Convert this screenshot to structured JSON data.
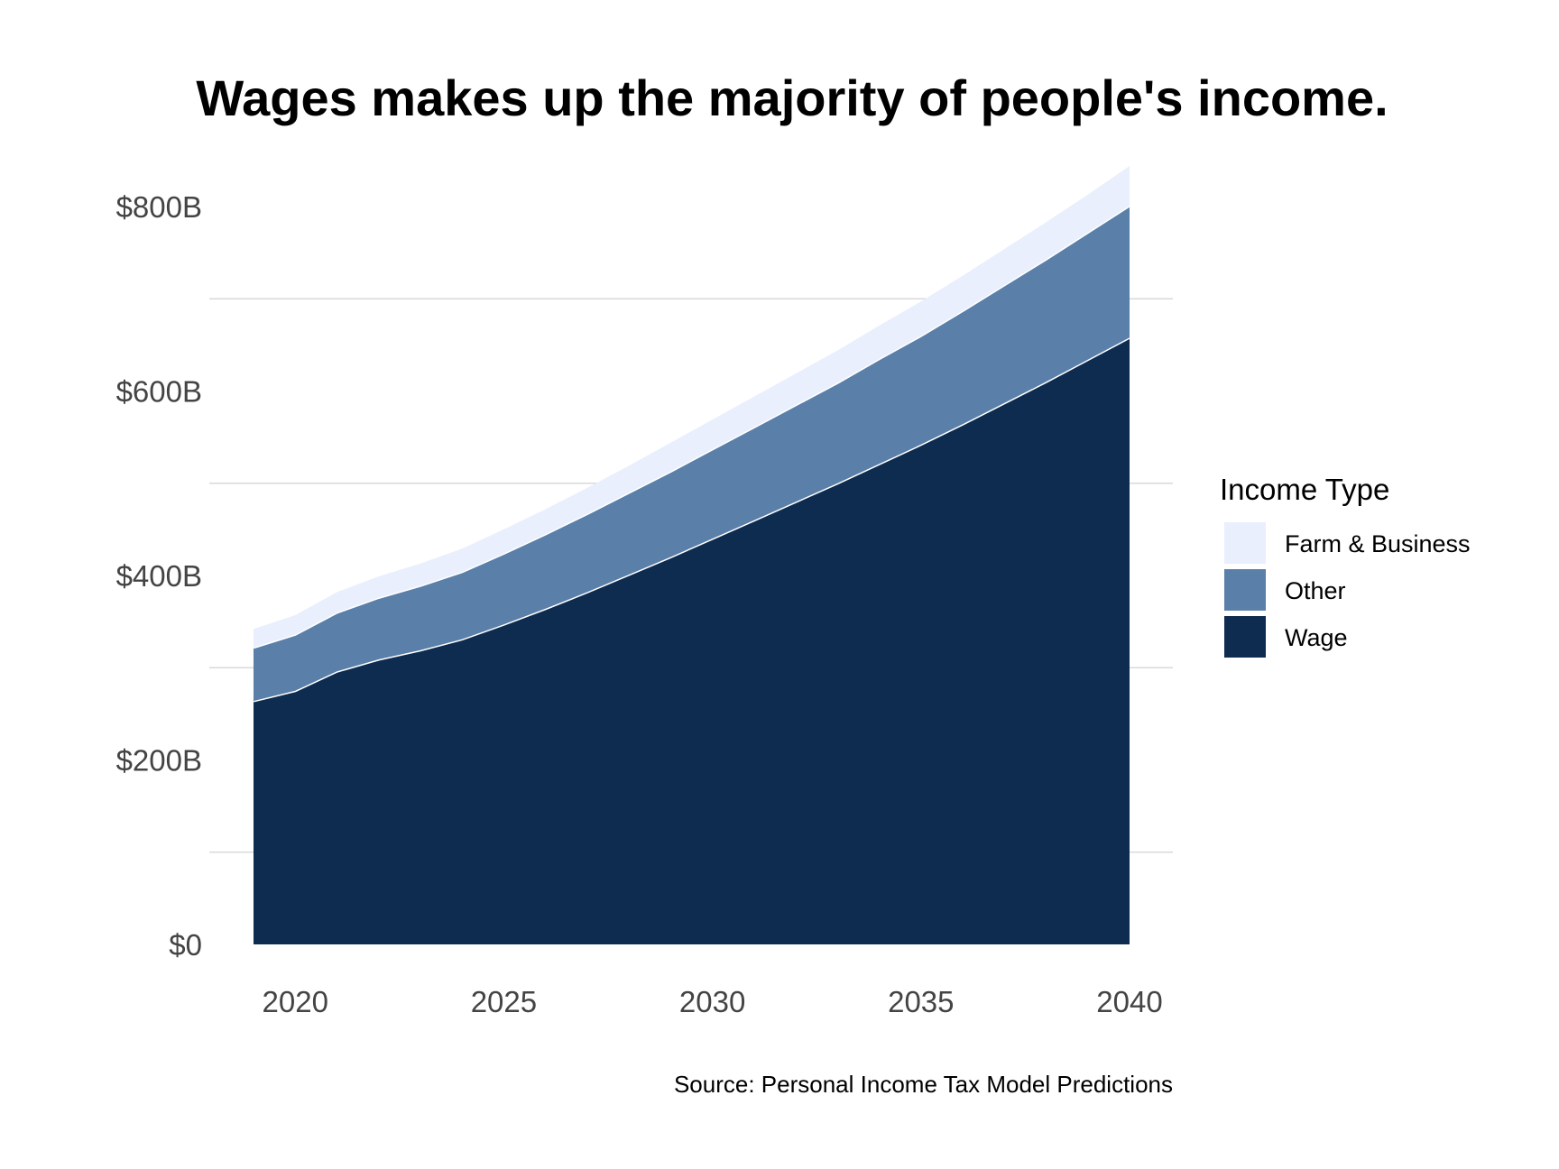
{
  "chart_data": {
    "type": "area",
    "stacked": true,
    "title": "Wages makes up the majority of people's income.",
    "caption": "Source: Personal Income Tax Model Predictions",
    "legend_title": "Income Type",
    "legend_position": "right",
    "xlabel": "",
    "ylabel": "",
    "xlim": [
      2019,
      2040
    ],
    "ylim": [
      0,
      800
    ],
    "grid": true,
    "x_ticks": [
      2020,
      2025,
      2030,
      2035,
      2040
    ],
    "x_tick_labels": [
      "2020",
      "2025",
      "2030",
      "2035",
      "2040"
    ],
    "y_ticks": [
      0,
      200,
      400,
      600,
      800
    ],
    "y_tick_labels": [
      "$0",
      "$200B",
      "$400B",
      "$600B",
      "$800B"
    ],
    "x": [
      2019,
      2020,
      2021,
      2022,
      2023,
      2024,
      2025,
      2026,
      2027,
      2028,
      2029,
      2030,
      2031,
      2032,
      2033,
      2034,
      2035,
      2036,
      2037,
      2038,
      2039,
      2040
    ],
    "series": [
      {
        "name": "Wage",
        "color": "#0e2c4f",
        "values": [
          264,
          275,
          296,
          309,
          319,
          331,
          347,
          364,
          382,
          401,
          420,
          440,
          460,
          480,
          500,
          521,
          542,
          564,
          587,
          610,
          634,
          658
        ]
      },
      {
        "name": "Other",
        "color": "#5a7fa8",
        "values": [
          58,
          61,
          64,
          67,
          70,
          73,
          77,
          81,
          85,
          89,
          93,
          97,
          101,
          105,
          109,
          114,
          118,
          123,
          128,
          133,
          138,
          143
        ]
      },
      {
        "name": "Farm & Business",
        "color": "#e9effc",
        "values": [
          20,
          21,
          22,
          23,
          24,
          25,
          26,
          27,
          28,
          29,
          31,
          32,
          33,
          34,
          35,
          36,
          37,
          38,
          39,
          40,
          41,
          43
        ]
      }
    ],
    "legend_order": [
      "Farm & Business",
      "Other",
      "Wage"
    ]
  }
}
